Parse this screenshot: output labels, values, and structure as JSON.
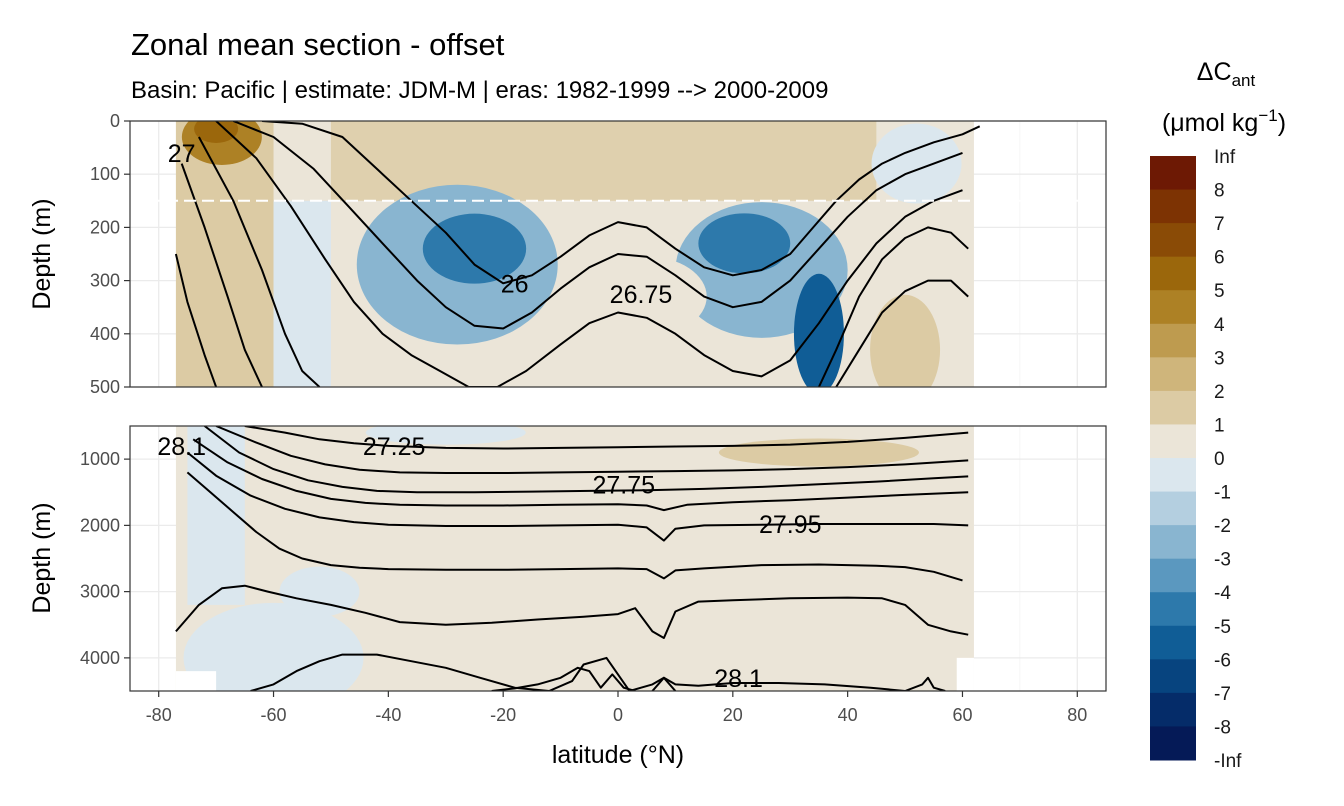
{
  "chart_data": {
    "type": "heatmap",
    "title": "Zonal mean section - offset",
    "subtitle": "Basin: Pacific | estimate: JDM-M | eras: 1982-1999 --> 2000-2009",
    "xlabel": "latitude (°N)",
    "ylabel": "Depth (m)",
    "xlim": [
      -85,
      85
    ],
    "x_ticks": [
      "-80",
      "-60",
      "-40",
      "-20",
      "0",
      "20",
      "40",
      "60",
      "80"
    ],
    "x_tick_values": [
      -80,
      -60,
      -40,
      -20,
      0,
      20,
      40,
      60,
      80
    ],
    "data_lat_range": [
      -77,
      62
    ],
    "panels": [
      {
        "name": "upper",
        "ylim": [
          0,
          500
        ],
        "y_ticks": [
          "0",
          "100",
          "200",
          "300",
          "400",
          "500"
        ],
        "y_tick_values": [
          0,
          100,
          200,
          300,
          400,
          500
        ],
        "reference_line_depth": 150,
        "contour_labels": [
          {
            "text": "26",
            "lat": -18,
            "depth": 305
          },
          {
            "text": "26.75",
            "lat": 4,
            "depth": 325
          },
          {
            "text": "27",
            "lat": -76,
            "depth": 60
          }
        ],
        "isopycnals": [
          {
            "lat": [
              -62,
              -55,
              -48,
              -42,
              -36,
              -30,
              -25,
              -20,
              -15,
              -10,
              -5,
              0,
              5,
              10,
              15,
              20,
              25,
              30,
              34,
              38,
              42,
              46,
              50,
              55,
              60,
              63
            ],
            "depth": [
              0,
              5,
              30,
              90,
              150,
              210,
              270,
              305,
              290,
              255,
              215,
              190,
              200,
              240,
              275,
              290,
              280,
              250,
              200,
              150,
              110,
              80,
              60,
              40,
              25,
              10
            ]
          },
          {
            "lat": [
              -67,
              -60,
              -53,
              -47,
              -41,
              -35,
              -30,
              -25,
              -20,
              -15,
              -10,
              -5,
              0,
              5,
              10,
              15,
              20,
              25,
              30,
              35,
              40,
              45,
              50,
              55,
              60
            ],
            "depth": [
              0,
              30,
              90,
              160,
              230,
              300,
              350,
              385,
              390,
              360,
              315,
              275,
              250,
              255,
              290,
              330,
              350,
              340,
              300,
              240,
              180,
              130,
              100,
              80,
              60
            ]
          },
          {
            "lat": [
              -70,
              -63,
              -57,
              -51,
              -46,
              -41,
              -36,
              -31,
              -26,
              -21,
              -16,
              -10,
              -5,
              0,
              5,
              10,
              15,
              20,
              25,
              30,
              35,
              40,
              45,
              50,
              55,
              60
            ],
            "depth": [
              0,
              70,
              160,
              260,
              340,
              400,
              440,
              470,
              500,
              500,
              470,
              420,
              380,
              360,
              370,
              400,
              440,
              470,
              480,
              450,
              380,
              300,
              230,
              180,
              150,
              130
            ]
          },
          {
            "lat": [
              -73,
              -67,
              -62,
              -58,
              -55,
              -52
            ],
            "depth": [
              30,
              150,
              280,
              400,
              470,
              500
            ]
          },
          {
            "lat": [
              -76,
              -72,
              -68,
              -65,
              -62
            ],
            "depth": [
              80,
              200,
              330,
              430,
              500
            ]
          },
          {
            "lat": [
              -77,
              -75,
              -72,
              -70
            ],
            "depth": [
              250,
              340,
              440,
              500
            ]
          },
          {
            "lat": [
              35,
              38,
              42,
              46,
              50,
              54,
              58,
              61
            ],
            "depth": [
              500,
              430,
              330,
              260,
              220,
              200,
              210,
              240
            ]
          },
          {
            "lat": [
              38,
              42,
              46,
              50,
              54,
              58,
              61
            ],
            "depth": [
              500,
              430,
              360,
              320,
              300,
              300,
              330
            ]
          }
        ]
      },
      {
        "name": "lower",
        "ylim": [
          500,
          4500
        ],
        "y_ticks": [
          "1000",
          "2000",
          "3000",
          "4000"
        ],
        "y_tick_values": [
          1000,
          2000,
          3000,
          4000
        ],
        "contour_labels": [
          {
            "text": "28.1",
            "lat": -76,
            "depth": 800
          },
          {
            "text": "27.25",
            "lat": -39,
            "depth": 800
          },
          {
            "text": "27.75",
            "lat": 1,
            "depth": 1380
          },
          {
            "text": "27.95",
            "lat": 30,
            "depth": 1980
          },
          {
            "text": "28.1",
            "lat": 21,
            "depth": 4300
          }
        ],
        "isopycnals": [
          {
            "lat": [
              -65,
              -58,
              -52,
              -46,
              -40,
              -30,
              -20,
              -10,
              0,
              10,
              20,
              30,
              40,
              50,
              61
            ],
            "depth": [
              500,
              600,
              700,
              760,
              800,
              830,
              840,
              830,
              820,
              810,
              800,
              780,
              740,
              680,
              600
            ]
          },
          {
            "lat": [
              -70,
              -63,
              -57,
              -51,
              -45,
              -38,
              -30,
              -20,
              -10,
              0,
              10,
              20,
              30,
              40,
              50,
              61
            ],
            "depth": [
              500,
              750,
              950,
              1080,
              1160,
              1200,
              1210,
              1210,
              1200,
              1190,
              1180,
              1170,
              1150,
              1120,
              1080,
              1020
            ]
          },
          {
            "lat": [
              -72,
              -66,
              -60,
              -54,
              -48,
              -42,
              -35,
              -25,
              -15,
              -5,
              5,
              15,
              25,
              35,
              45,
              55,
              61
            ],
            "depth": [
              500,
              900,
              1150,
              1320,
              1420,
              1480,
              1500,
              1500,
              1490,
              1480,
              1470,
              1450,
              1420,
              1380,
              1340,
              1290,
              1260
            ]
          },
          {
            "lat": [
              -74,
              -68,
              -62,
              -56,
              -50,
              -44,
              -38,
              -30,
              -20,
              -10,
              0,
              5,
              8,
              12,
              20,
              30,
              40,
              50,
              61
            ],
            "depth": [
              700,
              1050,
              1300,
              1480,
              1600,
              1660,
              1690,
              1700,
              1700,
              1690,
              1680,
              1700,
              1770,
              1690,
              1650,
              1620,
              1580,
              1540,
              1500
            ]
          },
          {
            "lat": [
              -75,
              -70,
              -64,
              -58,
              -52,
              -46,
              -40,
              -30,
              -20,
              -10,
              0,
              5,
              8,
              10,
              15,
              25,
              35,
              45,
              55,
              61
            ],
            "depth": [
              900,
              1250,
              1550,
              1750,
              1880,
              1950,
              1990,
              2010,
              2010,
              2000,
              1990,
              2030,
              2230,
              2050,
              2000,
              1990,
              1980,
              1980,
              1980,
              2000
            ]
          },
          {
            "lat": [
              -75,
              -71,
              -67,
              -63,
              -59,
              -55,
              -50,
              -45,
              -40,
              -30,
              -20,
              -10,
              0,
              5,
              8,
              10,
              15,
              25,
              35,
              45,
              50,
              55,
              60
            ],
            "depth": [
              1200,
              1500,
              1800,
              2100,
              2350,
              2500,
              2600,
              2640,
              2660,
              2670,
              2670,
              2660,
              2650,
              2660,
              2800,
              2680,
              2650,
              2600,
              2590,
              2610,
              2630,
              2700,
              2830
            ]
          },
          {
            "lat": [
              -77,
              -73,
              -69,
              -65,
              -61,
              -56,
              -50,
              -44,
              -38,
              -30,
              -22,
              -14,
              -6,
              0,
              3,
              6,
              8,
              10,
              14,
              20,
              30,
              40,
              46,
              50,
              54,
              58,
              61
            ],
            "depth": [
              3600,
              3200,
              2950,
              2910,
              3000,
              3100,
              3200,
              3320,
              3460,
              3500,
              3470,
              3420,
              3380,
              3340,
              3250,
              3600,
              3700,
              3300,
              3150,
              3130,
              3100,
              3090,
              3100,
              3200,
              3500,
              3600,
              3650
            ]
          },
          {
            "lat": [
              -64,
              -60,
              -56,
              -52,
              -48,
              -42,
              -36,
              -30,
              -24,
              -18,
              -12,
              -8,
              -6,
              -2,
              0,
              2,
              4,
              6,
              8,
              10
            ],
            "depth": [
              4500,
              4400,
              4200,
              4050,
              3950,
              3950,
              4050,
              4150,
              4300,
              4450,
              4500,
              4350,
              4100,
              4000,
              4250,
              4500,
              4450,
              4400,
              4300,
              4500
            ]
          },
          {
            "lat": [
              -22,
              -18,
              -14,
              -10,
              -7,
              -5,
              -3,
              -1,
              1,
              3
            ],
            "depth": [
              4500,
              4460,
              4400,
              4300,
              4150,
              4200,
              4450,
              4250,
              4450,
              4500
            ]
          },
          {
            "lat": [
              6,
              8,
              10,
              14,
              20,
              28,
              36,
              44,
              50
            ],
            "depth": [
              4500,
              4300,
              4400,
              4420,
              4380,
              4380,
              4400,
              4450,
              4500
            ]
          },
          {
            "lat": [
              50,
              53,
              54,
              55,
              57
            ],
            "depth": [
              4500,
              4400,
              4300,
              4450,
              4500
            ]
          }
        ]
      }
    ],
    "legend": {
      "title_main": "ΔC",
      "title_sub": "ant",
      "unit_prefix": "(μmol kg",
      "unit_sup": "−1",
      "unit_suffix": ")",
      "breaks": [
        "Inf",
        "8",
        "7",
        "6",
        "5",
        "4",
        "3",
        "2",
        "1",
        "0",
        "-1",
        "-2",
        "-3",
        "-4",
        "-5",
        "-6",
        "-7",
        "-8",
        "-Inf"
      ],
      "colors": [
        "#6d1904",
        "#7d3303",
        "#8a4b06",
        "#9b670c",
        "#ad8125",
        "#be9b4f",
        "#cfb57b",
        "#dccba4",
        "#ebe5d8",
        "#dbe7ee",
        "#b4cfe0",
        "#89b5d0",
        "#5b98bf",
        "#2d79ab",
        "#105d96",
        "#07447f",
        "#052c69",
        "#051a57"
      ]
    }
  }
}
